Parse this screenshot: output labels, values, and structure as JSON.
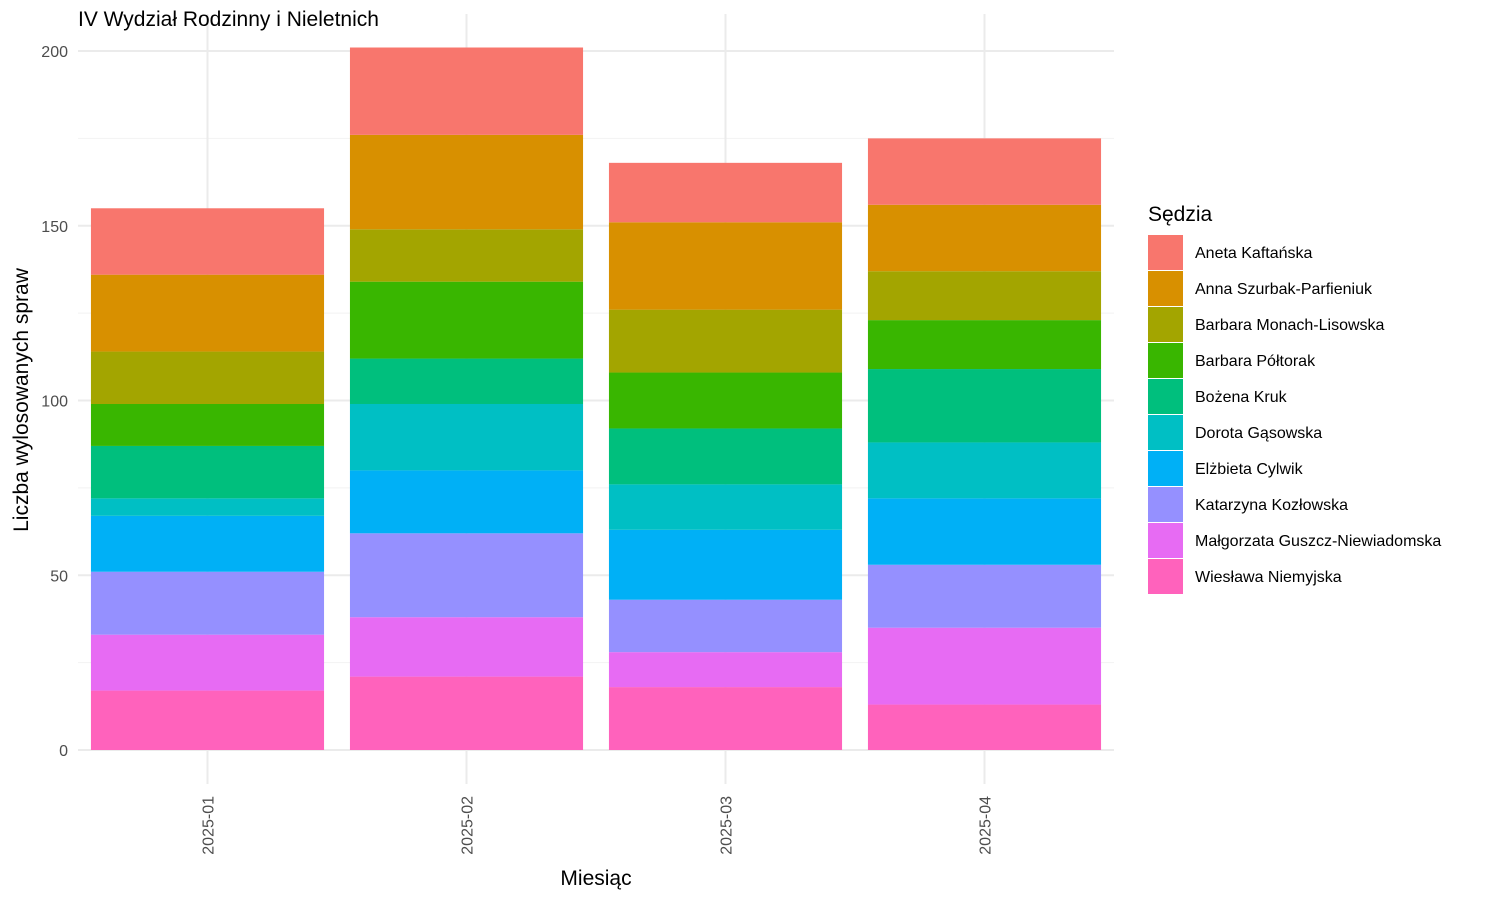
{
  "chart_data": {
    "type": "bar",
    "stacked": true,
    "title": "IV Wydział Rodzinny i Nieletnich",
    "xlabel": "Miesiąc",
    "ylabel": "Liczba wylosowanych spraw",
    "ylim": [
      0,
      210
    ],
    "yticks": [
      0,
      50,
      100,
      150,
      200
    ],
    "grid": true,
    "legend_title": "Sędzia",
    "legend_position": "right",
    "categories": [
      "2025-01",
      "2025-02",
      "2025-03",
      "2025-04"
    ],
    "series": [
      {
        "name": "Aneta Kaftańska",
        "color": "#F8766D",
        "values": [
          19,
          25,
          17,
          19
        ]
      },
      {
        "name": "Anna Szurbak-Parfieniuk",
        "color": "#D89000",
        "values": [
          22,
          27,
          25,
          19
        ]
      },
      {
        "name": "Barbara Monach-Lisowska",
        "color": "#A3A500",
        "values": [
          15,
          15,
          18,
          14
        ]
      },
      {
        "name": "Barbara Półtorak",
        "color": "#39B600",
        "values": [
          12,
          22,
          16,
          14
        ]
      },
      {
        "name": "Bożena Kruk",
        "color": "#00BF7D",
        "values": [
          15,
          13,
          16,
          21
        ]
      },
      {
        "name": "Dorota Gąsowska",
        "color": "#00BFC4",
        "values": [
          5,
          19,
          13,
          16
        ]
      },
      {
        "name": "Elżbieta Cylwik",
        "color": "#00B0F6",
        "values": [
          16,
          18,
          20,
          19
        ]
      },
      {
        "name": "Katarzyna Kozłowska",
        "color": "#9590FF",
        "values": [
          18,
          24,
          15,
          18
        ]
      },
      {
        "name": "Małgorzata Guszcz-Niewiadomska",
        "color": "#E76BF3",
        "values": [
          16,
          17,
          10,
          22
        ]
      },
      {
        "name": "Wiesława Niemyjska",
        "color": "#FF62BC",
        "values": [
          17,
          21,
          18,
          13
        ]
      }
    ]
  }
}
